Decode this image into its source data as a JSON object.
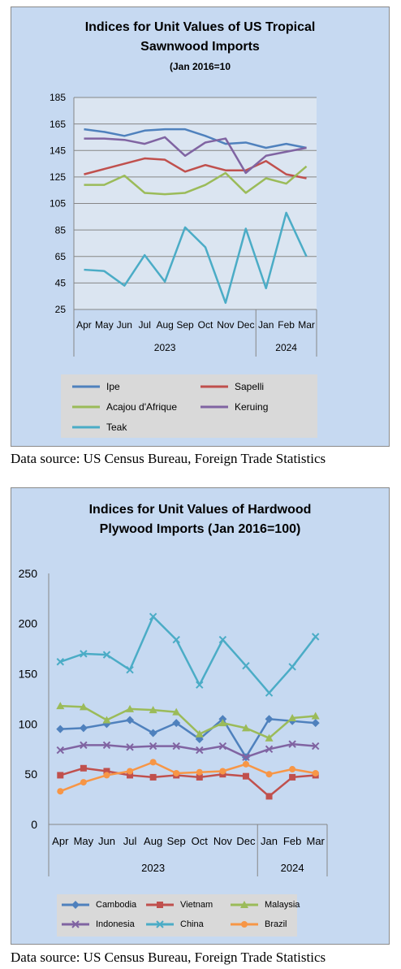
{
  "charts": [
    {
      "title_line1": "Indices for Unit Values of US Tropical",
      "title_line2": "Sawnwood Imports",
      "subtitle": "(Jan 2016=10",
      "caption": "Data source: US Census Bureau, Foreign Trade Statistics"
    },
    {
      "title_line1": "Indices for Unit Values of Hardwood",
      "title_line2": "Plywood Imports (Jan 2016=100)",
      "caption": "Data source: US Census Bureau, Foreign Trade Statistics"
    }
  ],
  "chart_data": [
    {
      "type": "line",
      "title": "Indices for Unit Values of US Tropical Sawnwood Imports",
      "subtitle": "(Jan 2016=10",
      "categories": [
        "Apr",
        "May",
        "Jun",
        "Jul",
        "Aug",
        "Sep",
        "Oct",
        "Nov",
        "Dec",
        "Jan",
        "Feb",
        "Mar"
      ],
      "year_groups": [
        {
          "label": "2023",
          "count": 9
        },
        {
          "label": "2024",
          "count": 3
        }
      ],
      "ylim": [
        25,
        185
      ],
      "yticks": [
        25,
        45,
        65,
        85,
        105,
        125,
        145,
        165,
        185
      ],
      "grid": true,
      "legend_position": "bottom",
      "series": [
        {
          "name": "Ipe",
          "color": "#4f81bd",
          "marker": "none",
          "values": [
            161,
            159,
            156,
            160,
            161,
            161,
            156,
            150,
            151,
            147,
            150,
            147
          ]
        },
        {
          "name": "Sapelli",
          "color": "#c0504d",
          "marker": "none",
          "values": [
            127,
            131,
            135,
            139,
            138,
            129,
            134,
            130,
            130,
            137,
            127,
            124
          ]
        },
        {
          "name": "Acajou d'Afrique",
          "color": "#9bbb59",
          "marker": "none",
          "values": [
            119,
            119,
            126,
            113,
            112,
            113,
            119,
            128,
            113,
            124,
            120,
            133
          ]
        },
        {
          "name": "Keruing",
          "color": "#8064a2",
          "marker": "none",
          "values": [
            154,
            154,
            153,
            150,
            155,
            141,
            151,
            154,
            128,
            141,
            144,
            147
          ]
        },
        {
          "name": "Teak",
          "color": "#4bacc6",
          "marker": "none",
          "values": [
            55,
            54,
            43,
            66,
            46,
            87,
            72,
            30,
            86,
            41,
            98,
            65
          ]
        }
      ]
    },
    {
      "type": "line",
      "title": "Indices for Unit Values of Hardwood Plywood Imports (Jan 2016=100)",
      "categories": [
        "Apr",
        "May",
        "Jun",
        "Jul",
        "Aug",
        "Sep",
        "Oct",
        "Nov",
        "Dec",
        "Jan",
        "Feb",
        "Mar"
      ],
      "year_groups": [
        {
          "label": "2023",
          "count": 9
        },
        {
          "label": "2024",
          "count": 3
        }
      ],
      "ylim": [
        0,
        250
      ],
      "yticks": [
        0,
        50,
        100,
        150,
        200,
        250
      ],
      "grid": false,
      "legend_position": "bottom",
      "series": [
        {
          "name": "Cambodia",
          "color": "#4f81bd",
          "marker": "diamond",
          "values": [
            95,
            96,
            100,
            104,
            91,
            101,
            85,
            105,
            67,
            105,
            103,
            101
          ]
        },
        {
          "name": "Vietnam",
          "color": "#c0504d",
          "marker": "square",
          "values": [
            49,
            56,
            53,
            49,
            47,
            49,
            47,
            50,
            48,
            28,
            47,
            49
          ]
        },
        {
          "name": "Malaysia",
          "color": "#9bbb59",
          "marker": "triangle",
          "values": [
            118,
            117,
            104,
            115,
            114,
            112,
            90,
            101,
            96,
            86,
            106,
            108
          ]
        },
        {
          "name": "Indonesia",
          "color": "#8064a2",
          "marker": "x",
          "values": [
            74,
            79,
            79,
            77,
            78,
            78,
            74,
            78,
            67,
            75,
            80,
            78
          ]
        },
        {
          "name": "China",
          "color": "#4bacc6",
          "marker": "x",
          "values": [
            162,
            170,
            169,
            154,
            207,
            184,
            139,
            184,
            158,
            131,
            157,
            187
          ]
        },
        {
          "name": "Brazil",
          "color": "#f79646",
          "marker": "circle",
          "values": [
            33,
            42,
            49,
            53,
            62,
            51,
            52,
            53,
            60,
            50,
            55,
            51
          ]
        }
      ]
    }
  ]
}
